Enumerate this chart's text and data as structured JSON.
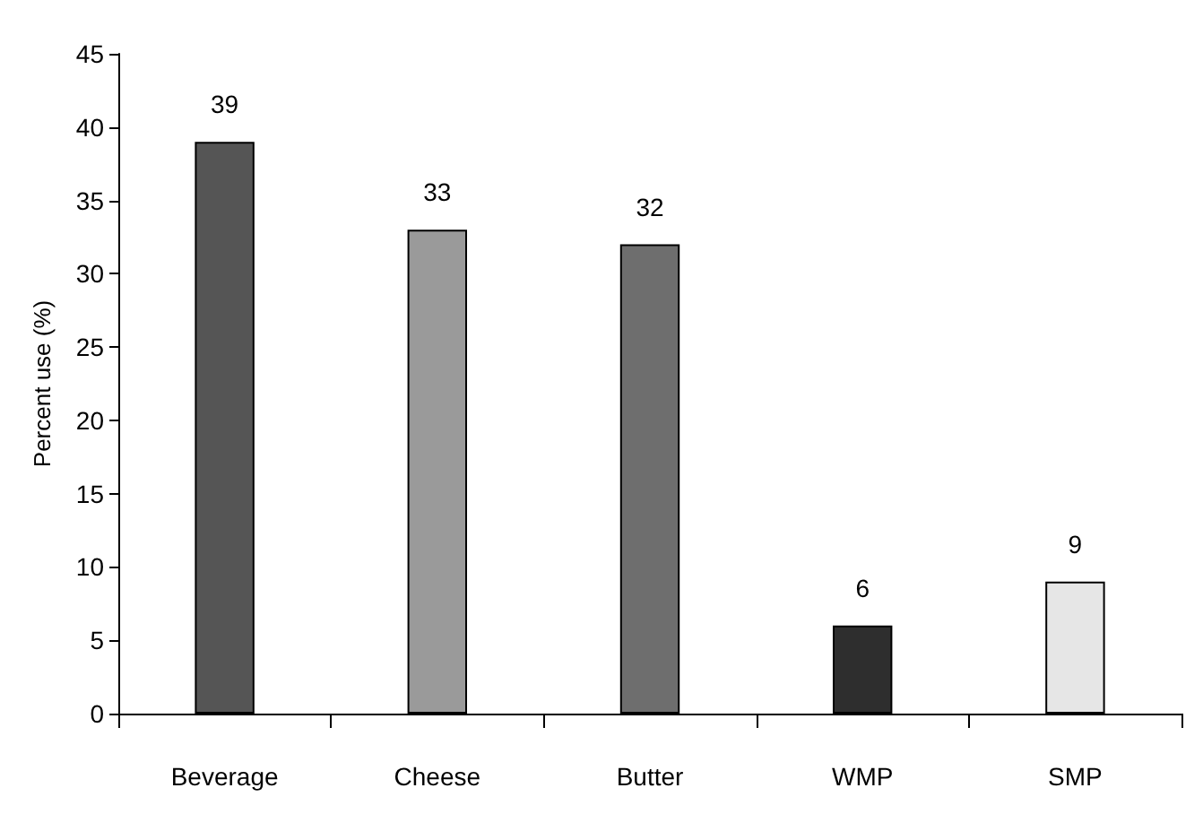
{
  "chart_data": {
    "type": "bar",
    "ylabel": "Percent use (%)",
    "categories": [
      "Beverage",
      "Cheese",
      "Butter",
      "WMP",
      "SMP"
    ],
    "values": [
      39,
      33,
      32,
      6,
      9
    ],
    "colors": [
      "#555555",
      "#9a9a9a",
      "#6e6e6e",
      "#2e2e2e",
      "#e6e6e6"
    ],
    "ylim": [
      0,
      45
    ],
    "yticks": [
      0,
      5,
      10,
      15,
      20,
      25,
      30,
      35,
      40,
      45
    ],
    "data_labels": true
  }
}
